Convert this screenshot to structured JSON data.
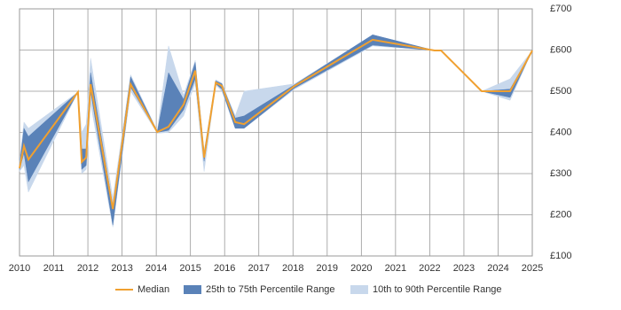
{
  "chart_data": {
    "type": "band-line",
    "x": [
      2010.0,
      2010.13,
      2010.26,
      2011.71,
      2011.82,
      2011.95,
      2012.08,
      2012.73,
      2013.25,
      2014.03,
      2014.36,
      2014.8,
      2015.14,
      2015.4,
      2015.74,
      2015.92,
      2016.31,
      2016.57,
      2018.05,
      2020.33,
      2022.14,
      2022.33,
      2023.52,
      2024.35,
      2025.0
    ],
    "series": [
      {
        "name": "Median",
        "color": "#f0a030",
        "values": [
          313,
          367,
          334,
          498,
          328,
          339,
          517,
          214,
          517,
          401,
          414,
          468,
          550,
          339,
          521,
          513,
          425,
          420,
          513,
          625,
          599,
          599,
          500,
          500,
          599
        ]
      },
      {
        "name": "25th to 75th Percentile Range",
        "color": "#5a82b8",
        "low": [
          310,
          350,
          280,
          498,
          310,
          320,
          500,
          175,
          510,
          400,
          405,
          455,
          530,
          330,
          518,
          505,
          410,
          410,
          508,
          612,
          599,
          599,
          500,
          485,
          599
        ],
        "high": [
          320,
          410,
          390,
          498,
          360,
          360,
          545,
          220,
          535,
          402,
          545,
          480,
          570,
          350,
          525,
          518,
          435,
          440,
          516,
          637,
          599,
          599,
          500,
          505,
          599
        ]
      },
      {
        "name": "10th to 90th Percentile Range",
        "color": "#c8d8ec",
        "low": [
          305,
          320,
          255,
          498,
          300,
          310,
          470,
          170,
          500,
          398,
          400,
          440,
          520,
          305,
          515,
          500,
          410,
          410,
          505,
          610,
          599,
          599,
          500,
          478,
          599
        ],
        "high": [
          330,
          425,
          410,
          498,
          400,
          420,
          580,
          240,
          540,
          404,
          610,
          490,
          575,
          355,
          528,
          520,
          440,
          500,
          518,
          637,
          599,
          599,
          500,
          530,
          599
        ]
      }
    ],
    "xlim": [
      2010,
      2025
    ],
    "xticks": [
      2010,
      2011,
      2012,
      2013,
      2014,
      2015,
      2016,
      2017,
      2018,
      2019,
      2020,
      2021,
      2022,
      2023,
      2024,
      2025
    ],
    "ylim": [
      100,
      700
    ],
    "yticks": [
      {
        "value": 100,
        "label": "£100"
      },
      {
        "value": 200,
        "label": "£200"
      },
      {
        "value": 300,
        "label": "£300"
      },
      {
        "value": 400,
        "label": "£400"
      },
      {
        "value": 500,
        "label": "£500"
      },
      {
        "value": 600,
        "label": "£600"
      },
      {
        "value": 700,
        "label": "£700"
      }
    ],
    "grid": true
  }
}
